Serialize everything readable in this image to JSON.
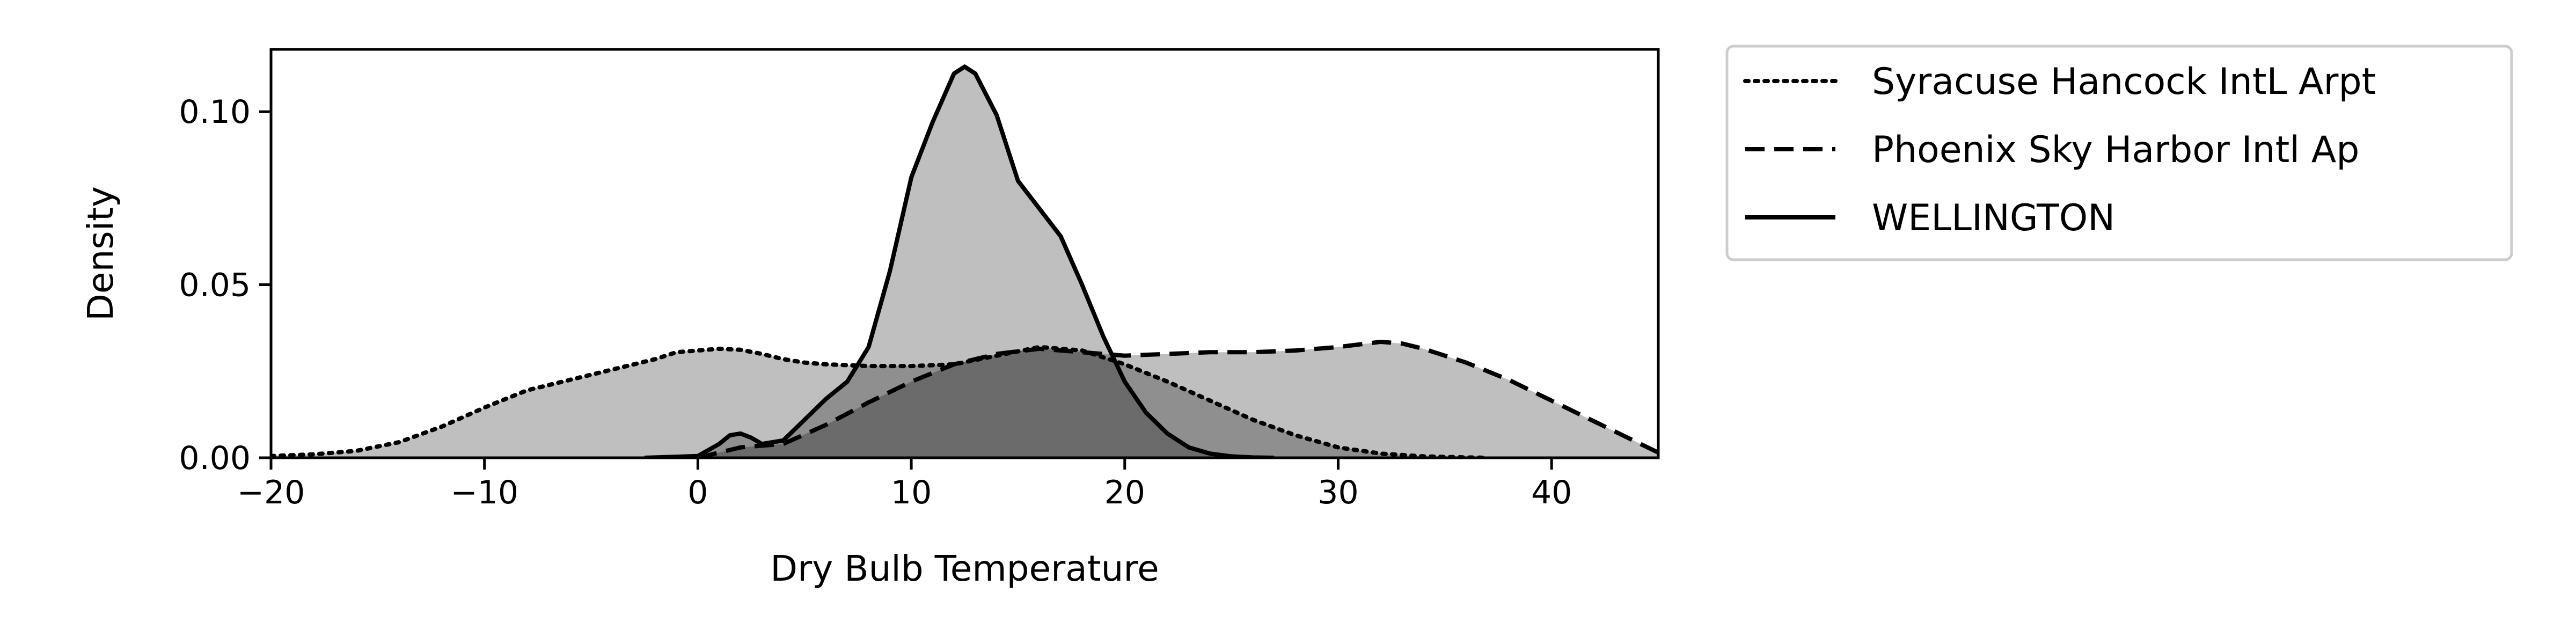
{
  "chart_data": {
    "type": "area",
    "xlabel": "Dry Bulb Temperature",
    "ylabel": "Density",
    "xlim": [
      -20,
      45
    ],
    "ylim": [
      0,
      0.118
    ],
    "x_ticks": [
      -20,
      -10,
      0,
      10,
      20,
      30,
      40
    ],
    "x_tick_labels": [
      "−20",
      "−10",
      "0",
      "10",
      "20",
      "30",
      "40"
    ],
    "y_ticks": [
      0.0,
      0.05,
      0.1
    ],
    "y_tick_labels": [
      "0.00",
      "0.05",
      "0.10"
    ],
    "grid": false,
    "legend_position": "outside-right",
    "fill_color": "#000000",
    "fill_opacity": 0.25,
    "series": [
      {
        "name": "Syracuse Hancock IntL Arpt",
        "line_style": "dotted",
        "x": [
          -20,
          -18,
          -16,
          -14,
          -12,
          -10,
          -8,
          -6,
          -4,
          -2,
          -1,
          0,
          1,
          2,
          3,
          4,
          5,
          6,
          8,
          10,
          12,
          14,
          16,
          18,
          19,
          20,
          22,
          24,
          26,
          28,
          30,
          32,
          34,
          36,
          37
        ],
        "y": [
          0.0005,
          0.001,
          0.002,
          0.0045,
          0.009,
          0.0145,
          0.0195,
          0.0225,
          0.0255,
          0.0285,
          0.0305,
          0.031,
          0.0315,
          0.0312,
          0.03,
          0.0285,
          0.0275,
          0.027,
          0.0265,
          0.0265,
          0.027,
          0.0295,
          0.032,
          0.031,
          0.029,
          0.027,
          0.022,
          0.0165,
          0.011,
          0.0065,
          0.003,
          0.0012,
          0.0004,
          0.0001,
          0.0
        ]
      },
      {
        "name": "Phoenix Sky Harbor Intl Ap",
        "line_style": "dashed",
        "x": [
          0,
          1,
          2,
          3,
          4,
          6,
          8,
          10,
          12,
          14,
          16,
          18,
          20,
          22,
          24,
          26,
          28,
          30,
          32,
          33,
          34,
          36,
          38,
          40,
          42,
          44,
          45
        ],
        "y": [
          0.0,
          0.0015,
          0.003,
          0.0035,
          0.004,
          0.0095,
          0.016,
          0.022,
          0.027,
          0.03,
          0.0315,
          0.0305,
          0.0295,
          0.03,
          0.0305,
          0.0305,
          0.031,
          0.032,
          0.0335,
          0.033,
          0.0315,
          0.0275,
          0.0225,
          0.0165,
          0.0105,
          0.0045,
          0.0015
        ]
      },
      {
        "name": "WELLINGTON",
        "line_style": "solid",
        "x": [
          -2.5,
          0,
          1,
          1.5,
          2,
          2.5,
          3,
          4,
          5,
          6,
          7,
          8,
          9,
          10,
          11,
          12,
          12.5,
          13,
          14,
          15,
          16,
          17,
          18,
          19,
          20,
          21,
          22,
          23,
          24,
          25,
          26,
          27
        ],
        "y": [
          0.0,
          0.0005,
          0.004,
          0.0065,
          0.007,
          0.0058,
          0.004,
          0.005,
          0.011,
          0.017,
          0.022,
          0.032,
          0.054,
          0.081,
          0.097,
          0.111,
          0.113,
          0.111,
          0.099,
          0.08,
          0.072,
          0.064,
          0.05,
          0.035,
          0.022,
          0.013,
          0.007,
          0.003,
          0.0012,
          0.0004,
          0.0001,
          0.0
        ]
      }
    ]
  }
}
